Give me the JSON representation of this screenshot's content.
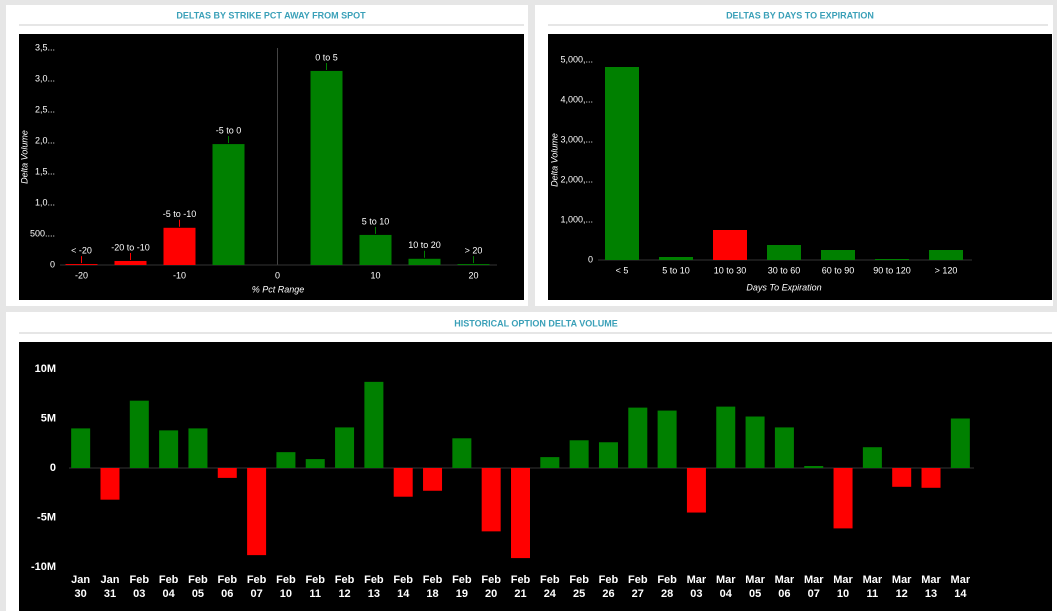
{
  "chart_data": [
    {
      "type": "bar",
      "title": "DELTAS BY STRIKE PCT AWAY FROM SPOT",
      "x_label": "% Pct Range",
      "y_label": "Delta Volume",
      "x": [
        -20,
        -15,
        -10,
        -5,
        5,
        10,
        15,
        20
      ],
      "categories": [
        "< -20",
        "-20 to -10",
        "-5 to -10",
        "-5 to 0",
        "0 to 5",
        "5 to 10",
        "10 to 20",
        "> 20"
      ],
      "values": [
        15,
        65,
        600,
        1950,
        3130,
        485,
        100,
        15
      ],
      "colors": [
        "#ff0000",
        "#ff0000",
        "#ff0000",
        "#008000",
        "#008000",
        "#008000",
        "#008000",
        "#008000"
      ],
      "xlim": [
        -22.5,
        22.5
      ],
      "xticks": [
        -20,
        -10,
        0,
        10,
        20
      ],
      "ylim": [
        0,
        3500
      ],
      "yticks": [
        0,
        {
          "value": 500,
          "label": "500...."
        },
        {
          "value": 1000,
          "label": "1,0..."
        },
        {
          "value": 1500,
          "label": "1,5..."
        },
        {
          "value": 2000,
          "label": "2,0..."
        },
        {
          "value": 2500,
          "label": "2,5..."
        },
        {
          "value": 3000,
          "label": "3,0..."
        },
        {
          "value": 3500,
          "label": "3,5..."
        }
      ]
    },
    {
      "type": "bar",
      "title": "DELTAS BY DAYS TO EXPIRATION",
      "x_label": "Days To Expiration",
      "y_label": "Delta Volume",
      "categories": [
        "< 5",
        "5 to 10",
        "10 to 30",
        "30 to 60",
        "60 to 90",
        "90 to 120",
        "> 120"
      ],
      "values": [
        4825,
        75,
        750,
        375,
        250,
        25,
        250
      ],
      "colors": [
        "#008000",
        "#008000",
        "#ff0000",
        "#008000",
        "#008000",
        "#008000",
        "#008000"
      ],
      "ylim": [
        0,
        5000
      ],
      "yticks": [
        0,
        {
          "value": 1000,
          "label": "1,000,..."
        },
        {
          "value": 2000,
          "label": "2,000,..."
        },
        {
          "value": 3000,
          "label": "3,000,..."
        },
        {
          "value": 4000,
          "label": "4,000,..."
        },
        {
          "value": 5000,
          "label": "5,000,..."
        }
      ]
    },
    {
      "type": "bar",
      "title": "HISTORICAL OPTION DELTA VOLUME",
      "categories": [
        [
          "Jan",
          "30"
        ],
        [
          "Jan",
          "31"
        ],
        [
          "Feb",
          "03"
        ],
        [
          "Feb",
          "04"
        ],
        [
          "Feb",
          "05"
        ],
        [
          "Feb",
          "06"
        ],
        [
          "Feb",
          "07"
        ],
        [
          "Feb",
          "10"
        ],
        [
          "Feb",
          "11"
        ],
        [
          "Feb",
          "12"
        ],
        [
          "Feb",
          "13"
        ],
        [
          "Feb",
          "14"
        ],
        [
          "Feb",
          "18"
        ],
        [
          "Feb",
          "19"
        ],
        [
          "Feb",
          "20"
        ],
        [
          "Feb",
          "21"
        ],
        [
          "Feb",
          "24"
        ],
        [
          "Feb",
          "25"
        ],
        [
          "Feb",
          "26"
        ],
        [
          "Feb",
          "27"
        ],
        [
          "Feb",
          "28"
        ],
        [
          "Mar",
          "03"
        ],
        [
          "Mar",
          "04"
        ],
        [
          "Mar",
          "05"
        ],
        [
          "Mar",
          "06"
        ],
        [
          "Mar",
          "07"
        ],
        [
          "Mar",
          "10"
        ],
        [
          "Mar",
          "11"
        ],
        [
          "Mar",
          "12"
        ],
        [
          "Mar",
          "13"
        ],
        [
          "Mar",
          "14"
        ]
      ],
      "values": [
        4000000,
        -3200000,
        6800000,
        3800000,
        4000000,
        -1000000,
        -8800000,
        1600000,
        900000,
        4100000,
        8700000,
        -2900000,
        -2300000,
        3000000,
        -6400000,
        -9100000,
        1100000,
        2800000,
        2600000,
        6100000,
        5800000,
        -4500000,
        6200000,
        5200000,
        4100000,
        200000,
        -6100000,
        2100000,
        -1900000,
        -2000000,
        5000000
      ],
      "positive_color": "#008000",
      "negative_color": "#ff0000",
      "ylim": [
        -10000000,
        10000000
      ],
      "yticks": [
        {
          "value": -10000000,
          "label": "-10M"
        },
        {
          "value": -5000000,
          "label": "-5M"
        },
        0,
        {
          "value": 5000000,
          "label": "5M"
        },
        {
          "value": 10000000,
          "label": "10M"
        }
      ]
    }
  ]
}
